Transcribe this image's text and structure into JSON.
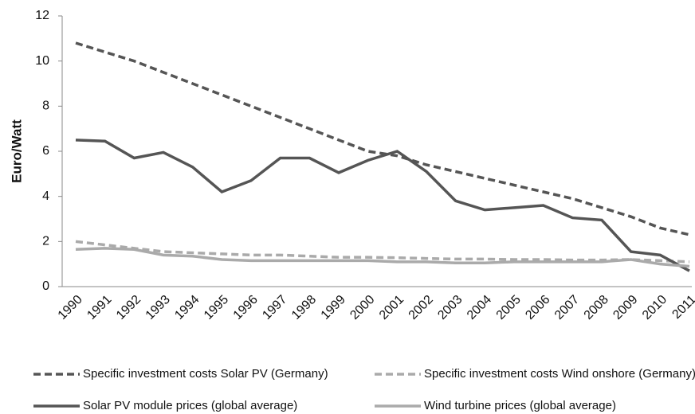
{
  "chart_data": {
    "type": "line",
    "ylabel": "Euro/Watt",
    "categories": [
      "1990",
      "1991",
      "1992",
      "1993",
      "1994",
      "1995",
      "1996",
      "1997",
      "1998",
      "1999",
      "2000",
      "2001",
      "2002",
      "2003",
      "2004",
      "2005",
      "2006",
      "2007",
      "2008",
      "2009",
      "2010",
      "2011"
    ],
    "series": [
      {
        "name": "Specific investment costs Solar PV (Germany)",
        "color": "#555555",
        "dashed": true,
        "values": [
          10.8,
          10.4,
          10.0,
          9.5,
          9.0,
          8.5,
          8.0,
          7.5,
          7.0,
          6.5,
          6.0,
          5.8,
          5.4,
          5.1,
          4.8,
          4.5,
          4.2,
          3.9,
          3.5,
          3.1,
          2.6,
          2.3
        ]
      },
      {
        "name": "Specific investment costs Wind onshore (Germany)",
        "color": "#aaaaaa",
        "dashed": true,
        "values": [
          2.0,
          1.85,
          1.7,
          1.55,
          1.5,
          1.45,
          1.4,
          1.4,
          1.35,
          1.3,
          1.3,
          1.28,
          1.25,
          1.22,
          1.22,
          1.2,
          1.2,
          1.18,
          1.18,
          1.2,
          1.15,
          1.1
        ]
      },
      {
        "name": "Solar PV module prices (global average)",
        "color": "#555555",
        "dashed": false,
        "values": [
          6.5,
          6.45,
          5.7,
          5.95,
          5.3,
          4.2,
          4.7,
          5.7,
          5.7,
          5.05,
          5.6,
          6.0,
          5.1,
          3.8,
          3.4,
          3.5,
          3.6,
          3.05,
          2.95,
          1.55,
          1.4,
          0.7
        ]
      },
      {
        "name": "Wind turbine prices (global average)",
        "color": "#aaaaaa",
        "dashed": false,
        "values": [
          1.65,
          1.7,
          1.65,
          1.4,
          1.35,
          1.2,
          1.15,
          1.15,
          1.15,
          1.15,
          1.15,
          1.1,
          1.1,
          1.05,
          1.05,
          1.1,
          1.1,
          1.1,
          1.1,
          1.2,
          1.0,
          0.9
        ]
      }
    ],
    "ylim": [
      0,
      12
    ],
    "yticks": [
      0,
      2,
      4,
      6,
      8,
      10,
      12
    ],
    "grid": false,
    "legend": "bottom"
  }
}
